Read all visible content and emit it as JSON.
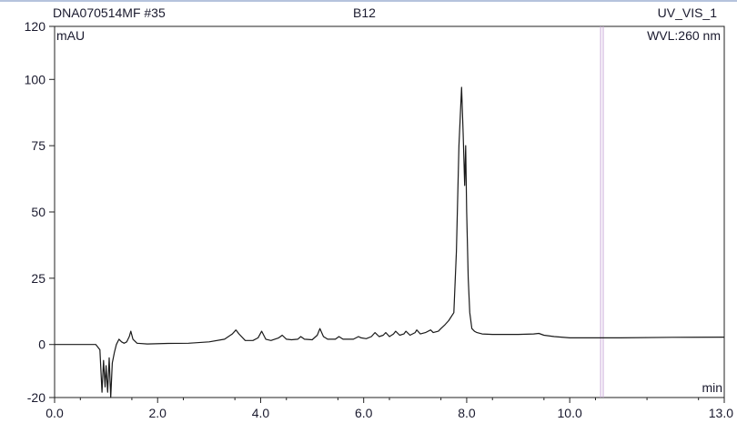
{
  "header": {
    "sample": "DNA070514MF #35",
    "vial": "B12",
    "channel": "UV_VIS_1",
    "wavelength": "WVL:260 nm"
  },
  "chart_data": {
    "type": "line",
    "xlabel": "min",
    "ylabel": "mAU",
    "xlim": [
      0.0,
      13.0
    ],
    "ylim": [
      -20,
      120
    ],
    "x_ticks": [
      "0.0",
      "2.0",
      "4.0",
      "6.0",
      "8.0",
      "10.0",
      "13.0"
    ],
    "x_tick_values": [
      0,
      2,
      4,
      6,
      8,
      10,
      13
    ],
    "y_ticks": [
      "120",
      "100",
      "75",
      "50",
      "25",
      "0",
      "-20"
    ],
    "y_tick_values": [
      120,
      100,
      75,
      50,
      25,
      0,
      -20
    ],
    "grid": false,
    "vertical_markers": [
      10.6,
      10.65
    ],
    "series": [
      {
        "color": "#1a1a1a",
        "x": [
          0.0,
          0.8,
          0.88,
          0.92,
          0.95,
          0.98,
          1.0,
          1.03,
          1.06,
          1.09,
          1.12,
          1.16,
          1.2,
          1.25,
          1.3,
          1.35,
          1.4,
          1.45,
          1.48,
          1.52,
          1.6,
          1.8,
          2.2,
          2.6,
          3.0,
          3.3,
          3.45,
          3.52,
          3.58,
          3.7,
          3.85,
          3.95,
          4.02,
          4.1,
          4.2,
          4.35,
          4.42,
          4.5,
          4.6,
          4.72,
          4.78,
          4.85,
          5.0,
          5.1,
          5.15,
          5.22,
          5.3,
          5.45,
          5.52,
          5.6,
          5.8,
          5.9,
          5.95,
          6.05,
          6.15,
          6.22,
          6.3,
          6.38,
          6.43,
          6.5,
          6.58,
          6.62,
          6.7,
          6.78,
          6.82,
          6.9,
          7.0,
          7.03,
          7.1,
          7.2,
          7.3,
          7.35,
          7.45,
          7.5,
          7.58,
          7.65,
          7.75,
          7.8,
          7.85,
          7.9,
          7.93,
          7.96,
          7.98,
          8.0,
          8.03,
          8.06,
          8.1,
          8.15,
          8.2,
          8.3,
          8.5,
          9.0,
          9.3,
          9.4,
          9.5,
          9.7,
          10.0,
          11.0,
          12.0,
          13.0
        ],
        "y": [
          0.0,
          0.0,
          -2.0,
          -18.0,
          -6.0,
          -16.0,
          -8.0,
          -18.0,
          -5.0,
          -20.0,
          -7.0,
          -3.0,
          0.0,
          2.0,
          1.0,
          0.5,
          1.0,
          3.0,
          5.0,
          2.0,
          0.5,
          0.2,
          0.4,
          0.5,
          1.0,
          2.0,
          4.0,
          5.5,
          4.0,
          1.5,
          1.5,
          2.5,
          5.0,
          2.0,
          1.5,
          2.5,
          3.5,
          2.0,
          1.8,
          2.0,
          3.0,
          2.0,
          1.8,
          3.5,
          6.0,
          3.0,
          2.0,
          2.0,
          3.0,
          2.0,
          2.0,
          3.0,
          2.5,
          2.2,
          3.0,
          4.5,
          3.0,
          3.5,
          4.5,
          3.0,
          4.0,
          5.0,
          3.5,
          4.0,
          5.0,
          3.5,
          4.5,
          5.5,
          4.0,
          4.5,
          5.5,
          4.5,
          5.0,
          6.0,
          7.5,
          9.0,
          12.0,
          35.0,
          75.0,
          97.0,
          80.0,
          60.0,
          75.0,
          50.0,
          25.0,
          12.0,
          6.0,
          5.0,
          4.5,
          4.0,
          3.8,
          3.8,
          4.0,
          4.2,
          3.5,
          3.0,
          2.5,
          2.5,
          2.7,
          2.8
        ]
      }
    ]
  }
}
